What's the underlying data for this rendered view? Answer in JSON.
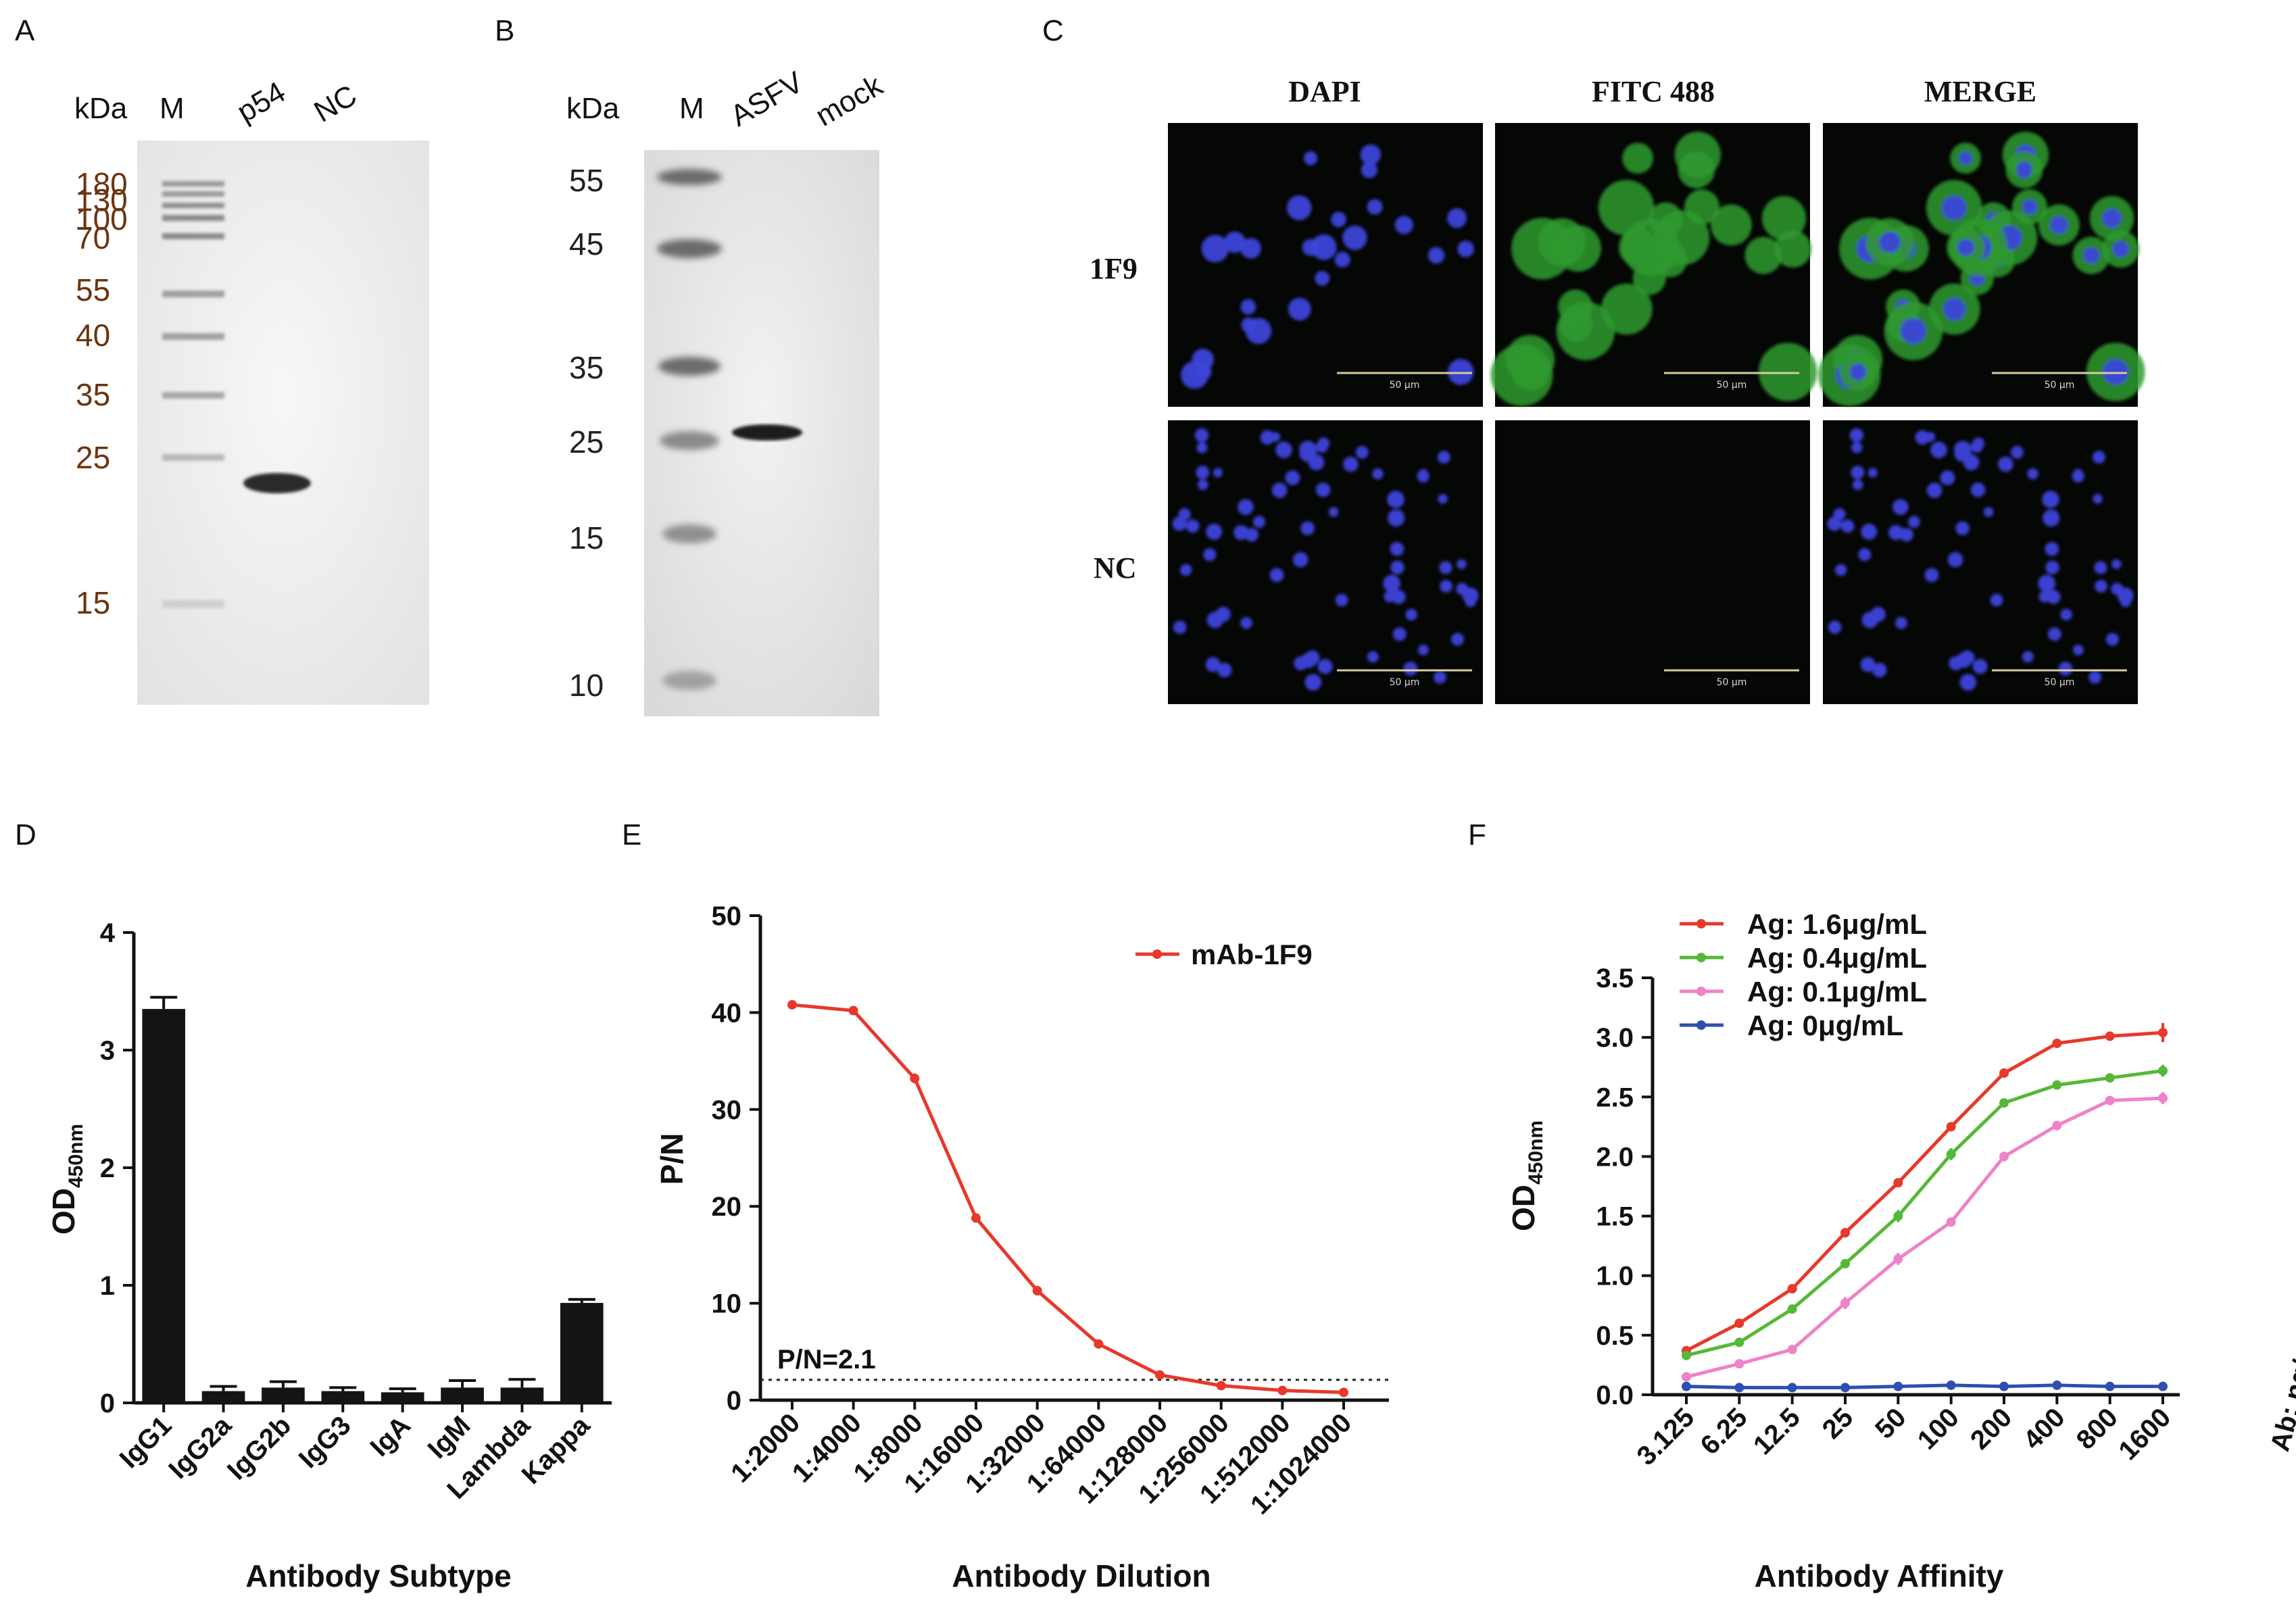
{
  "panel_labels": {
    "a": "A",
    "b": "B",
    "c": "C",
    "d": "D",
    "e": "E",
    "f": "F"
  },
  "panel_a": {
    "kda_label": "kDa",
    "lanes": [
      "M",
      "p54",
      "NC"
    ],
    "markers": [
      "180",
      "130",
      "100",
      "70",
      "55",
      "40",
      "35",
      "25",
      "15"
    ]
  },
  "panel_b": {
    "kda_label": "kDa",
    "lanes": [
      "M",
      "ASFV",
      "mock"
    ],
    "markers": [
      "55",
      "45",
      "35",
      "25",
      "15",
      "10"
    ]
  },
  "panel_c": {
    "columns": [
      "DAPI",
      "FITC 488",
      "MERGE"
    ],
    "rows": [
      "1F9",
      "NC"
    ],
    "scale_bar": "50 μm"
  },
  "colors": {
    "red": "#e8382b",
    "green": "#55b837",
    "pink": "#ee82c6",
    "blue": "#2e4fb0",
    "bar": "#141414"
  },
  "chart_data": [
    {
      "panel": "D",
      "type": "bar",
      "categories": [
        "IgG1",
        "IgG2a",
        "IgG2b",
        "IgG3",
        "IgA",
        "IgM",
        "Lambda",
        "Kappa"
      ],
      "values": [
        3.35,
        0.1,
        0.13,
        0.1,
        0.09,
        0.13,
        0.13,
        0.85
      ],
      "errors": [
        0.1,
        0.04,
        0.05,
        0.03,
        0.03,
        0.06,
        0.07,
        0.03
      ],
      "xlabel": "Antibody Subtype",
      "ylabel": "OD",
      "ylabel_sub": "450nm",
      "ylim": [
        0,
        4
      ],
      "yticks": [
        "0",
        "1",
        "2",
        "3",
        "4"
      ]
    },
    {
      "panel": "E",
      "type": "line",
      "x": [
        "1:2000",
        "1:4000",
        "1:8000",
        "1:16000",
        "1:32000",
        "1:64000",
        "1:128000",
        "1:256000",
        "1:512000",
        "1:1024000"
      ],
      "series": [
        {
          "name": "mAb-1F9",
          "values": [
            40.8,
            40.2,
            33.2,
            18.8,
            11.3,
            5.8,
            2.6,
            1.5,
            1.0,
            0.8
          ],
          "errors": [
            0,
            0,
            0.5,
            0.4,
            0.5,
            0.2,
            0.1,
            0.1,
            0.05,
            0.05
          ]
        }
      ],
      "threshold_value": 2.1,
      "threshold_label": "P/N=2.1",
      "xlabel": "Antibody Dilution",
      "ylabel": "P/N",
      "ylim": [
        0,
        50
      ],
      "yticks": [
        "0",
        "10",
        "20",
        "30",
        "40",
        "50"
      ]
    },
    {
      "panel": "F",
      "type": "line",
      "x": [
        "3.125",
        "6.25",
        "12.5",
        "25",
        "50",
        "100",
        "200",
        "400",
        "800",
        "1600"
      ],
      "series": [
        {
          "name": "Ag: 1.6μg/mL",
          "values": [
            0.37,
            0.6,
            0.89,
            1.36,
            1.78,
            2.25,
            2.7,
            2.95,
            3.01,
            3.04
          ],
          "errors": [
            0.02,
            0.02,
            0.02,
            0.04,
            0.03,
            0.03,
            0.02,
            0.03,
            0.03,
            0.08
          ]
        },
        {
          "name": "Ag: 0.4μg/mL",
          "values": [
            0.33,
            0.44,
            0.72,
            1.1,
            1.5,
            2.02,
            2.45,
            2.6,
            2.66,
            2.72
          ],
          "errors": [
            0.02,
            0.02,
            0.02,
            0.02,
            0.05,
            0.05,
            0.03,
            0.02,
            0.02,
            0.05
          ]
        },
        {
          "name": "Ag: 0.1μg/mL",
          "values": [
            0.15,
            0.26,
            0.38,
            0.77,
            1.14,
            1.45,
            2.0,
            2.26,
            2.47,
            2.49
          ],
          "errors": [
            0.02,
            0.02,
            0.02,
            0.05,
            0.05,
            0.02,
            0.04,
            0.04,
            0.02,
            0.05
          ]
        },
        {
          "name": "Ag: 0μg/mL",
          "values": [
            0.07,
            0.06,
            0.06,
            0.06,
            0.07,
            0.08,
            0.07,
            0.08,
            0.07,
            0.07
          ],
          "errors": [
            0.01,
            0.01,
            0.01,
            0.01,
            0.01,
            0.01,
            0.01,
            0.01,
            0.01,
            0.01
          ]
        }
      ],
      "xlabel": "Antibody Affinity",
      "xunit": "Ab: ng/mL",
      "ylabel": "OD",
      "ylabel_sub": "450nm",
      "ylim": [
        0,
        3.5
      ],
      "yticks": [
        "0.0",
        "0.5",
        "1.0",
        "1.5",
        "2.0",
        "2.5",
        "3.0",
        "3.5"
      ]
    }
  ]
}
